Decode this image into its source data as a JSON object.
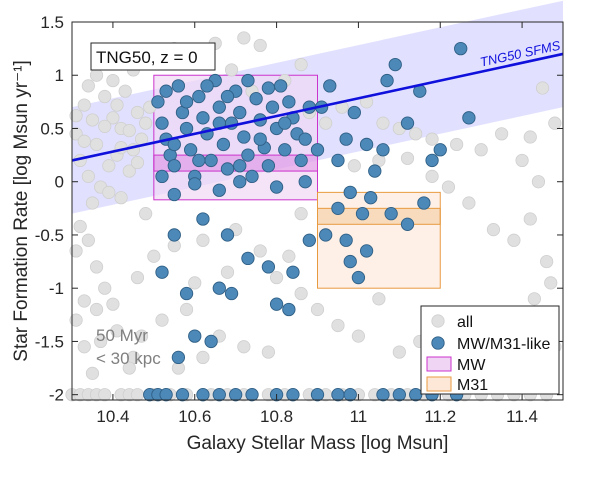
{
  "chart_data": {
    "type": "scatter",
    "xlabel": "Galaxy Stellar Mass [log Msun]",
    "ylabel": "Star Formation Rate [log Msun yr⁻¹]",
    "xlim": [
      10.3,
      11.5
    ],
    "ylim": [
      -2.05,
      1.5
    ],
    "xticks": [
      "10.4",
      "10.6",
      "10.8",
      "11",
      "11.2",
      "11.4"
    ],
    "yticks": [
      "-2",
      "-1.5",
      "-1",
      "-0.5",
      "0",
      "0.5",
      "1",
      "1.5"
    ],
    "xtick_values": [
      10.4,
      10.6,
      10.8,
      11.0,
      11.2,
      11.4
    ],
    "ytick_values": [
      -2,
      -1.5,
      -1,
      -0.5,
      0,
      0.5,
      1,
      1.5
    ],
    "annotation_box": "TNG50, z = 0",
    "annotation_corner": [
      "50 Myr",
      "< 30 kpc"
    ],
    "sfms": {
      "label": "TNG50 SFMS",
      "x": [
        10.3,
        11.5
      ],
      "y": [
        0.2,
        1.2
      ],
      "band_halfwidth": 0.5,
      "line_color": "#1010dd",
      "band_color": "#dcdcff"
    },
    "regions": [
      {
        "name": "MW",
        "x": [
          10.5,
          10.9
        ],
        "y": [
          -0.17,
          1.0
        ],
        "inner_y": [
          0.1,
          0.25
        ],
        "edge": "#cc33cc",
        "fill": "#f0d6f4"
      },
      {
        "name": "M31",
        "x": [
          10.9,
          11.2
        ],
        "y": [
          -1.0,
          -0.1
        ],
        "inner_y": [
          -0.4,
          -0.25
        ],
        "edge": "#e89a40",
        "fill": "#fde8d8"
      }
    ],
    "legend": {
      "placement": "bottom-right",
      "entries": [
        "all",
        "MW/M31-like",
        "MW",
        "M31"
      ]
    },
    "colors": {
      "all": "#e0e0e0",
      "all_edge": "#cfcfcf",
      "mw_m31": "#4c88b8",
      "mw_m31_edge": "#2f5f85"
    },
    "series": [
      {
        "name": "all",
        "points": [
          [
            10.31,
            0.45
          ],
          [
            10.33,
            0.72
          ],
          [
            10.35,
            0.58
          ],
          [
            10.36,
            0.35
          ],
          [
            10.38,
            0.8
          ],
          [
            10.4,
            0.6
          ],
          [
            10.42,
            0.5
          ],
          [
            10.43,
            0.85
          ],
          [
            10.45,
            0.3
          ],
          [
            10.46,
            0.65
          ],
          [
            10.48,
            0.55
          ],
          [
            10.32,
            0.2
          ],
          [
            10.34,
            0.05
          ],
          [
            10.37,
            -0.05
          ],
          [
            10.39,
            0.15
          ],
          [
            10.41,
            0.25
          ],
          [
            10.44,
            0.1
          ],
          [
            10.47,
            0.4
          ],
          [
            10.49,
            0.7
          ],
          [
            10.34,
            0.9
          ],
          [
            10.4,
            0.95
          ],
          [
            10.45,
            1.05
          ],
          [
            10.36,
            1.0
          ],
          [
            10.31,
            0.62
          ],
          [
            10.33,
            0.38
          ],
          [
            10.42,
            0.32
          ],
          [
            10.44,
            0.48
          ],
          [
            10.38,
            0.52
          ],
          [
            10.46,
            0.18
          ],
          [
            10.41,
            0.72
          ],
          [
            10.35,
            -0.2
          ],
          [
            10.32,
            -0.42
          ],
          [
            10.48,
            -0.3
          ],
          [
            10.42,
            -0.15
          ],
          [
            10.39,
            -0.1
          ],
          [
            10.31,
            -0.65
          ],
          [
            10.34,
            -0.55
          ],
          [
            10.36,
            -0.8
          ],
          [
            10.38,
            -1.0
          ],
          [
            10.33,
            -1.12
          ],
          [
            10.36,
            -1.2
          ],
          [
            10.4,
            -1.15
          ],
          [
            10.46,
            -0.9
          ],
          [
            10.47,
            -1.45
          ],
          [
            10.31,
            -1.3
          ],
          [
            10.33,
            -1.55
          ],
          [
            10.37,
            -1.5
          ],
          [
            10.41,
            -1.4
          ],
          [
            10.45,
            -1.65
          ],
          [
            10.44,
            -1.75
          ],
          [
            10.35,
            -1.8
          ],
          [
            10.5,
            1.15
          ],
          [
            10.55,
            1.25
          ],
          [
            10.6,
            1.2
          ],
          [
            10.65,
            1.3
          ],
          [
            10.72,
            1.35
          ],
          [
            10.76,
            1.28
          ],
          [
            10.69,
            1.05
          ],
          [
            10.74,
            0.85
          ],
          [
            10.82,
            0.95
          ],
          [
            10.86,
            1.1
          ],
          [
            10.88,
            0.65
          ],
          [
            10.92,
            0.55
          ],
          [
            10.96,
            0.7
          ],
          [
            11.02,
            0.75
          ],
          [
            11.06,
            0.55
          ],
          [
            11.1,
            0.5
          ],
          [
            11.14,
            0.45
          ],
          [
            11.18,
            0.4
          ],
          [
            11.24,
            0.35
          ],
          [
            11.3,
            0.3
          ],
          [
            11.35,
            0.45
          ],
          [
            11.4,
            0.2
          ],
          [
            11.44,
            0.0
          ],
          [
            11.48,
            0.55
          ],
          [
            11.45,
            0.88
          ],
          [
            11.42,
            0.42
          ],
          [
            10.99,
            0.15
          ],
          [
            11.05,
            0.2
          ],
          [
            11.12,
            0.22
          ],
          [
            11.18,
            0.05
          ],
          [
            11.22,
            -0.05
          ],
          [
            11.27,
            -0.2
          ],
          [
            11.33,
            -0.45
          ],
          [
            11.38,
            -0.55
          ],
          [
            11.42,
            -0.35
          ],
          [
            11.46,
            -0.75
          ],
          [
            11.47,
            -0.95
          ],
          [
            11.43,
            -1.1
          ],
          [
            11.38,
            -1.3
          ],
          [
            11.32,
            -1.25
          ],
          [
            11.28,
            -1.45
          ],
          [
            11.25,
            -1.6
          ],
          [
            11.36,
            -1.7
          ],
          [
            11.48,
            -1.55
          ],
          [
            11.41,
            -1.85
          ],
          [
            10.9,
            -1.2
          ],
          [
            10.95,
            -1.35
          ],
          [
            11.0,
            -1.45
          ],
          [
            11.05,
            -1.1
          ],
          [
            11.1,
            -1.6
          ],
          [
            11.15,
            -1.5
          ],
          [
            10.52,
            -1.3
          ],
          [
            10.58,
            -1.2
          ],
          [
            10.66,
            -1.45
          ],
          [
            10.72,
            -1.55
          ],
          [
            10.78,
            -1.6
          ],
          [
            10.56,
            -1.75
          ],
          [
            10.62,
            -1.65
          ],
          [
            10.5,
            -0.7
          ],
          [
            10.55,
            -0.6
          ],
          [
            10.62,
            -0.55
          ],
          [
            10.7,
            -0.45
          ],
          [
            10.76,
            -0.65
          ],
          [
            10.83,
            -0.7
          ],
          [
            10.86,
            -0.3
          ],
          [
            10.6,
            -0.95
          ],
          [
            10.68,
            -0.85
          ],
          [
            10.8,
            -0.9
          ],
          [
            10.86,
            -1.05
          ],
          [
            10.3,
            -2.0
          ],
          [
            10.32,
            -2.0
          ],
          [
            10.34,
            -2.0
          ],
          [
            10.36,
            -2.0
          ],
          [
            10.38,
            -2.0
          ],
          [
            10.42,
            -2.0
          ],
          [
            10.44,
            -2.0
          ],
          [
            10.46,
            -2.0
          ],
          [
            10.5,
            -2.0
          ],
          [
            10.54,
            -2.0
          ],
          [
            10.58,
            -2.0
          ],
          [
            10.64,
            -2.0
          ],
          [
            10.68,
            -2.0
          ],
          [
            10.72,
            -2.0
          ],
          [
            10.78,
            -2.0
          ],
          [
            10.82,
            -2.0
          ],
          [
            10.88,
            -2.0
          ],
          [
            10.92,
            -2.0
          ],
          [
            10.96,
            -2.0
          ],
          [
            11.0,
            -2.0
          ],
          [
            11.04,
            -2.0
          ],
          [
            11.08,
            -2.0
          ],
          [
            11.12,
            -2.0
          ],
          [
            11.16,
            -2.0
          ],
          [
            11.22,
            -2.0
          ],
          [
            11.26,
            -2.0
          ],
          [
            11.3,
            -2.0
          ],
          [
            11.34,
            -2.0
          ],
          [
            11.38,
            -2.0
          ],
          [
            11.42,
            -2.0
          ],
          [
            11.46,
            -2.0
          ]
        ]
      },
      {
        "name": "MW/M31-like",
        "points": [
          [
            10.51,
            0.75
          ],
          [
            10.52,
            0.55
          ],
          [
            10.53,
            0.4
          ],
          [
            10.54,
            0.25
          ],
          [
            10.55,
            0.15
          ],
          [
            10.52,
            0.05
          ],
          [
            10.56,
            0.9
          ],
          [
            10.57,
            0.65
          ],
          [
            10.58,
            0.5
          ],
          [
            10.59,
            0.3
          ],
          [
            10.6,
            0.05
          ],
          [
            10.61,
            0.8
          ],
          [
            10.62,
            0.6
          ],
          [
            10.63,
            0.45
          ],
          [
            10.64,
            0.2
          ],
          [
            10.65,
            0.95
          ],
          [
            10.66,
            0.7
          ],
          [
            10.67,
            0.35
          ],
          [
            10.68,
            0.12
          ],
          [
            10.69,
            0.55
          ],
          [
            10.7,
            0.85
          ],
          [
            10.71,
            0.65
          ],
          [
            10.72,
            0.42
          ],
          [
            10.73,
            0.25
          ],
          [
            10.74,
            0.05
          ],
          [
            10.75,
            0.78
          ],
          [
            10.76,
            0.58
          ],
          [
            10.77,
            0.32
          ],
          [
            10.78,
            0.15
          ],
          [
            10.79,
            0.7
          ],
          [
            10.8,
            0.5
          ],
          [
            10.81,
            0.9
          ],
          [
            10.82,
            0.3
          ],
          [
            10.84,
            0.6
          ],
          [
            10.85,
            0.45
          ],
          [
            10.86,
            0.2
          ],
          [
            10.88,
            0.7
          ],
          [
            10.53,
            0.85
          ],
          [
            10.58,
            0.75
          ],
          [
            10.63,
            0.9
          ],
          [
            10.68,
            0.8
          ],
          [
            10.73,
            0.95
          ],
          [
            10.78,
            0.88
          ],
          [
            10.83,
            0.75
          ],
          [
            10.55,
            -0.12
          ],
          [
            10.6,
            -0.02
          ],
          [
            10.66,
            -0.08
          ],
          [
            10.71,
            0.0
          ],
          [
            10.8,
            -0.05
          ],
          [
            10.87,
            0.0
          ],
          [
            10.55,
            0.35
          ],
          [
            10.61,
            0.2
          ],
          [
            10.66,
            0.55
          ],
          [
            10.71,
            0.15
          ],
          [
            10.76,
            0.4
          ],
          [
            10.82,
            0.55
          ],
          [
            10.87,
            0.4
          ],
          [
            10.9,
            0.3
          ],
          [
            10.91,
            0.7
          ],
          [
            10.93,
            0.9
          ],
          [
            10.95,
            0.2
          ],
          [
            10.97,
            0.4
          ],
          [
            10.99,
            0.65
          ],
          [
            11.02,
            0.35
          ],
          [
            11.04,
            0.1
          ],
          [
            11.06,
            0.3
          ],
          [
            11.07,
            0.95
          ],
          [
            11.09,
            1.1
          ],
          [
            11.12,
            0.55
          ],
          [
            11.15,
            0.85
          ],
          [
            11.18,
            0.2
          ],
          [
            11.2,
            0.3
          ],
          [
            11.25,
            1.25
          ],
          [
            11.27,
            0.6
          ],
          [
            10.95,
            -0.25
          ],
          [
            10.98,
            -0.1
          ],
          [
            11.01,
            -0.3
          ],
          [
            11.03,
            -0.15
          ],
          [
            11.08,
            -0.3
          ],
          [
            11.12,
            -0.4
          ],
          [
            11.16,
            -0.2
          ],
          [
            10.92,
            -0.5
          ],
          [
            10.98,
            -0.75
          ],
          [
            11.02,
            -0.65
          ],
          [
            11.0,
            -0.9
          ],
          [
            10.97,
            -0.55
          ],
          [
            10.52,
            -0.85
          ],
          [
            10.58,
            -1.05
          ],
          [
            10.55,
            -0.5
          ],
          [
            10.62,
            -0.35
          ],
          [
            10.68,
            -0.5
          ],
          [
            10.73,
            -0.72
          ],
          [
            10.78,
            -0.8
          ],
          [
            10.8,
            -1.15
          ],
          [
            10.83,
            -1.2
          ],
          [
            10.84,
            -0.85
          ],
          [
            10.88,
            -0.55
          ],
          [
            10.66,
            -1.0
          ],
          [
            10.6,
            -1.45
          ],
          [
            10.64,
            -1.5
          ],
          [
            10.56,
            -1.65
          ],
          [
            10.69,
            -1.05
          ],
          [
            10.49,
            -2.0
          ],
          [
            10.51,
            -2.0
          ],
          [
            10.53,
            -2.0
          ],
          [
            10.57,
            -2.0
          ],
          [
            10.62,
            -2.0
          ],
          [
            10.66,
            -2.0
          ],
          [
            10.7,
            -2.0
          ],
          [
            10.74,
            -2.0
          ],
          [
            10.8,
            -2.0
          ],
          [
            10.84,
            -2.0
          ],
          [
            10.9,
            -2.0
          ],
          [
            10.95,
            -2.0
          ],
          [
            10.98,
            -2.0
          ],
          [
            11.06,
            -2.0
          ],
          [
            11.1,
            -2.0
          ],
          [
            11.14,
            -2.0
          ],
          [
            11.18,
            -2.0
          ],
          [
            11.24,
            -2.0
          ]
        ]
      }
    ]
  }
}
